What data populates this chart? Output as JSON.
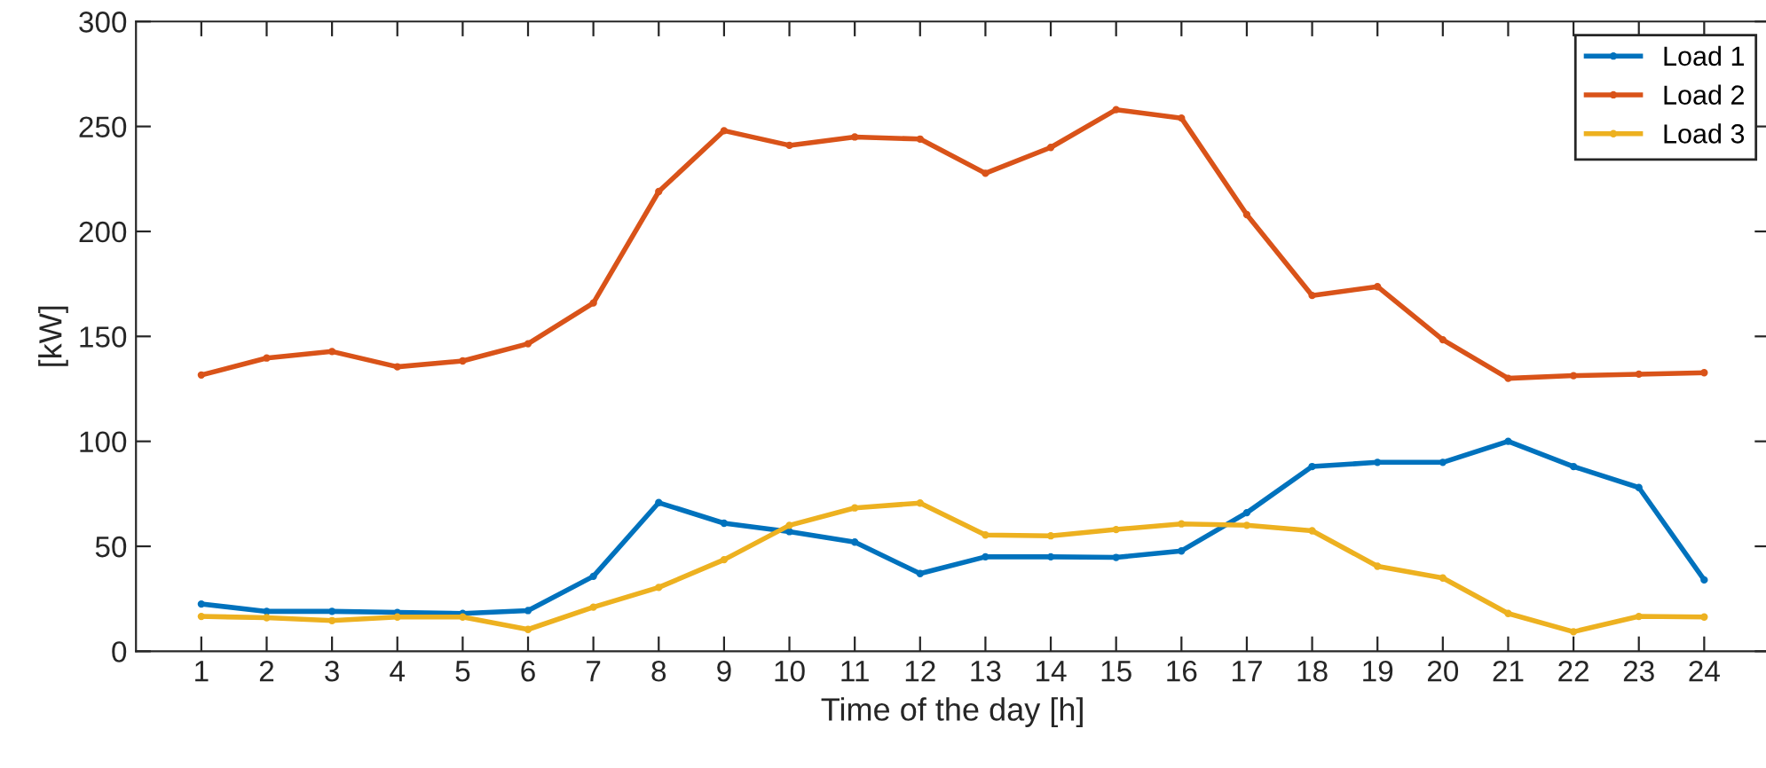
{
  "chart_data": {
    "type": "line",
    "xlabel": "Time of the day [h]",
    "ylabel": "[kW]",
    "x": [
      1,
      2,
      3,
      4,
      5,
      6,
      7,
      8,
      9,
      10,
      11,
      12,
      13,
      14,
      15,
      16,
      17,
      18,
      19,
      20,
      21,
      22,
      23,
      24
    ],
    "xlim": [
      0,
      25
    ],
    "xticks": [
      1,
      2,
      3,
      4,
      5,
      6,
      7,
      8,
      9,
      10,
      11,
      12,
      13,
      14,
      15,
      16,
      17,
      18,
      19,
      20,
      21,
      22,
      23,
      24
    ],
    "ylim": [
      0,
      300
    ],
    "yticks": [
      0,
      50,
      100,
      150,
      200,
      250,
      300
    ],
    "grid": false,
    "legend": "top right",
    "marker": "circle",
    "line_style": "solid",
    "series": [
      {
        "name": "Load 1",
        "color": "#0072bd",
        "values": [
          22.5,
          19,
          19,
          18.5,
          18,
          19.4,
          35.7,
          70.8,
          61,
          57,
          52,
          37,
          45,
          45,
          44.7,
          47.8,
          66,
          88,
          90,
          90,
          100,
          88,
          78,
          34
        ]
      },
      {
        "name": "Load 2",
        "color": "#d95319",
        "values": [
          131.6,
          139.7,
          142.8,
          135.5,
          138.3,
          146.5,
          165.9,
          219,
          248,
          241,
          245,
          244,
          227.7,
          240,
          258,
          254,
          208,
          169.5,
          173.7,
          148.4,
          130,
          131.3,
          132,
          132.7
        ]
      },
      {
        "name": "Load 3",
        "color": "#edb120",
        "values": [
          16.6,
          16,
          14.6,
          16.3,
          16.3,
          10.4,
          21,
          30.4,
          43.6,
          60,
          68.3,
          70.6,
          55.4,
          55,
          58,
          60.7,
          60,
          57.4,
          40.5,
          34.9,
          18,
          9.3,
          16.6,
          16.3
        ]
      }
    ]
  }
}
